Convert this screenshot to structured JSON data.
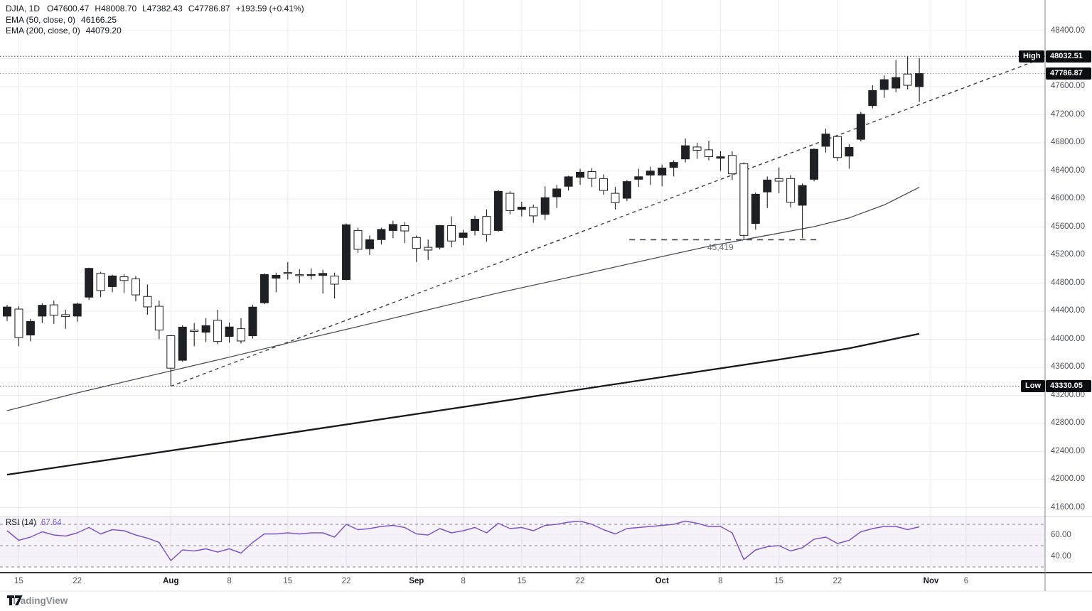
{
  "legend": {
    "symbol": "DJIA, 1D",
    "open": "O47600.47",
    "high": "H48008.70",
    "low": "L47382.43",
    "close": "C47786.87",
    "change": "+193.59 (+0.41%)",
    "ema50_label": "EMA (50, close, 0)",
    "ema50_value": "46166.25",
    "ema200_label": "EMA (200, close, 0)",
    "ema200_value": "44079.20"
  },
  "marks": {
    "high_label": "High",
    "high_value": "48032.51",
    "last_value": "47786.87",
    "low_label": "Low",
    "low_value": "43330.05"
  },
  "support": {
    "label": "45,419"
  },
  "rsi_legend": {
    "label": "RSI (14)",
    "value": "67.64"
  },
  "watermark": {
    "text": "TradingView"
  },
  "colors": {
    "up_candle": "#1f2024",
    "down_candle_fill": "#ffffff",
    "candle_stroke": "#1f2024",
    "ema50": "#4b4e57",
    "ema200": "#17181c",
    "trendline": "#3e4148",
    "rsi_line": "#7e57c2",
    "rsi_band_fill": "rgba(126,87,194,0.08)",
    "grid": "#ececec",
    "badge_bg": "#0c0d10",
    "axis_text": "#51545c",
    "dotted_mark": "#4e5056",
    "dotted_last": "#989ba4",
    "support_dash": "#4c4f58"
  },
  "price_axis": {
    "labels": [
      "48400.00",
      "47600.00",
      "47200.00",
      "46800.00",
      "46400.00",
      "46000.00",
      "45600.00",
      "45200.00",
      "44800.00",
      "44400.00",
      "44000.00",
      "43600.00",
      "43200.00",
      "42800.00",
      "42400.00",
      "42000.00",
      "41600.00"
    ],
    "values": [
      48400,
      47600,
      47200,
      46800,
      46400,
      46000,
      45600,
      45200,
      44800,
      44400,
      44000,
      43600,
      43200,
      42800,
      42400,
      42000,
      41600
    ],
    "grid_min": 41600,
    "grid_max": 48400,
    "grid_step": 400
  },
  "rsi_axis": {
    "labels": [
      "60.00",
      "40.00"
    ],
    "values": [
      60,
      40
    ]
  },
  "time_axis": {
    "ticks": [
      {
        "label": "15",
        "i": 1,
        "bold": false
      },
      {
        "label": "22",
        "i": 6,
        "bold": false
      },
      {
        "label": "Aug",
        "i": 14,
        "bold": true
      },
      {
        "label": "8",
        "i": 19,
        "bold": false
      },
      {
        "label": "15",
        "i": 24,
        "bold": false
      },
      {
        "label": "22",
        "i": 29,
        "bold": false
      },
      {
        "label": "Sep",
        "i": 35,
        "bold": true
      },
      {
        "label": "8",
        "i": 39,
        "bold": false
      },
      {
        "label": "15",
        "i": 44,
        "bold": false
      },
      {
        "label": "22",
        "i": 49,
        "bold": false
      },
      {
        "label": "Oct",
        "i": 56,
        "bold": true
      },
      {
        "label": "8",
        "i": 61,
        "bold": false
      },
      {
        "label": "15",
        "i": 66,
        "bold": false
      },
      {
        "label": "22",
        "i": 71,
        "bold": false
      },
      {
        "label": "Nov",
        "i": 79,
        "bold": true
      },
      {
        "label": "6",
        "i": 82,
        "bold": false
      }
    ]
  },
  "chart_data": {
    "type": "candlestick",
    "symbol": "DJIA",
    "interval": "1D",
    "title": "DJIA, 1D",
    "ylim": [
      41600,
      48400
    ],
    "grid": true,
    "last_bar": {
      "open": 47600.47,
      "high": 48008.7,
      "low": 47382.43,
      "close": 47786.87,
      "change": 193.59,
      "change_pct": 0.41
    },
    "high_mark": 48032.51,
    "low_mark": 43330.05,
    "last_price": 47786.87,
    "candles_ohlc": [
      [
        44330,
        44490,
        44260,
        44459
      ],
      [
        44430,
        44470,
        43900,
        44023
      ],
      [
        44060,
        44290,
        43970,
        44254
      ],
      [
        44330,
        44510,
        44230,
        44484
      ],
      [
        44490,
        44550,
        44220,
        44342
      ],
      [
        44350,
        44420,
        44150,
        44323
      ],
      [
        44330,
        44520,
        44250,
        44502
      ],
      [
        44600,
        45020,
        44560,
        45010
      ],
      [
        44940,
        44960,
        44600,
        44694
      ],
      [
        44750,
        44920,
        44670,
        44902
      ],
      [
        44890,
        44930,
        44660,
        44837
      ],
      [
        44860,
        44900,
        44540,
        44632
      ],
      [
        44610,
        44780,
        44350,
        44461
      ],
      [
        44470,
        44550,
        44000,
        44131
      ],
      [
        44050,
        44060,
        43330.05,
        43588
      ],
      [
        43700,
        44200,
        43680,
        44173
      ],
      [
        44130,
        44230,
        43900,
        44111
      ],
      [
        44100,
        44300,
        43960,
        44193
      ],
      [
        44270,
        44420,
        43930,
        43968
      ],
      [
        44040,
        44240,
        43950,
        44175
      ],
      [
        44150,
        44300,
        43940,
        43975
      ],
      [
        44050,
        44490,
        44010,
        44458
      ],
      [
        44520,
        44940,
        44500,
        44922
      ],
      [
        44870,
        44950,
        44670,
        44911
      ],
      [
        44950,
        45100,
        44850,
        44946
      ],
      [
        44920,
        45000,
        44800,
        44912
      ],
      [
        44920,
        45010,
        44850,
        44922
      ],
      [
        44910,
        44990,
        44650,
        44938
      ],
      [
        44900,
        44950,
        44580,
        44785
      ],
      [
        44850,
        45650,
        44840,
        45631
      ],
      [
        45550,
        45590,
        45230,
        45282
      ],
      [
        45290,
        45480,
        45200,
        45418
      ],
      [
        45420,
        45590,
        45350,
        45565
      ],
      [
        45550,
        45690,
        45440,
        45636
      ],
      [
        45620,
        45670,
        45370,
        45544
      ],
      [
        45450,
        45480,
        45100,
        45295
      ],
      [
        45310,
        45420,
        45130,
        45271
      ],
      [
        45310,
        45630,
        45280,
        45621
      ],
      [
        45620,
        45750,
        45310,
        45400
      ],
      [
        45450,
        45560,
        45340,
        45514
      ],
      [
        45550,
        45760,
        45480,
        45711
      ],
      [
        45750,
        45850,
        45390,
        45490
      ],
      [
        45550,
        46130,
        45530,
        46108
      ],
      [
        46080,
        46110,
        45780,
        45834
      ],
      [
        45850,
        45960,
        45750,
        45883
      ],
      [
        45880,
        45920,
        45660,
        45758
      ],
      [
        45780,
        46180,
        45700,
        46018
      ],
      [
        46030,
        46200,
        45870,
        46142
      ],
      [
        46180,
        46330,
        46120,
        46315
      ],
      [
        46310,
        46430,
        46200,
        46381
      ],
      [
        46390,
        46440,
        46170,
        46293
      ],
      [
        46290,
        46350,
        46060,
        46121
      ],
      [
        46080,
        46170,
        45850,
        45947
      ],
      [
        46010,
        46270,
        45970,
        46247
      ],
      [
        46280,
        46430,
        46170,
        46316
      ],
      [
        46340,
        46460,
        46200,
        46398
      ],
      [
        46340,
        46490,
        46180,
        46441
      ],
      [
        46450,
        46550,
        46320,
        46520
      ],
      [
        46570,
        46860,
        46520,
        46758
      ],
      [
        46740,
        46800,
        46570,
        46694
      ],
      [
        46700,
        46830,
        46550,
        46603
      ],
      [
        46580,
        46680,
        46400,
        46601
      ],
      [
        46620,
        46680,
        46270,
        46358
      ],
      [
        46500,
        46520,
        45419,
        45480
      ],
      [
        45650,
        46090,
        45560,
        46067
      ],
      [
        46100,
        46320,
        45870,
        46270
      ],
      [
        46290,
        46450,
        46080,
        46253
      ],
      [
        46290,
        46340,
        45880,
        45952
      ],
      [
        45910,
        46220,
        45440,
        46191
      ],
      [
        46280,
        46720,
        46250,
        46707
      ],
      [
        46750,
        47000,
        46660,
        46925
      ],
      [
        46890,
        46910,
        46540,
        46590
      ],
      [
        46610,
        46780,
        46430,
        46735
      ],
      [
        46850,
        47240,
        46820,
        47207
      ],
      [
        47330,
        47620,
        47290,
        47545
      ],
      [
        47560,
        47760,
        47440,
        47700
      ],
      [
        47580,
        47980,
        47520,
        47730
      ],
      [
        47780,
        48032.51,
        47560,
        47620
      ],
      [
        47600.47,
        48008.7,
        47382.43,
        47786.87
      ]
    ],
    "ema50": {
      "period": 50,
      "current": 46166.25,
      "anchors": [
        [
          0,
          42982
        ],
        [
          6,
          43235
        ],
        [
          12,
          43470
        ],
        [
          18,
          43705
        ],
        [
          24,
          43945
        ],
        [
          30,
          44180
        ],
        [
          36,
          44420
        ],
        [
          42,
          44660
        ],
        [
          48,
          44880
        ],
        [
          54,
          45105
        ],
        [
          60,
          45325
        ],
        [
          64,
          45450
        ],
        [
          69,
          45605
        ],
        [
          72,
          45730
        ],
        [
          75,
          45915
        ],
        [
          78,
          46166.25
        ]
      ]
    },
    "ema200": {
      "period": 200,
      "current": 44079.2,
      "anchors": [
        [
          0,
          42070
        ],
        [
          12,
          42363
        ],
        [
          24,
          42660
        ],
        [
          36,
          42960
        ],
        [
          48,
          43260
        ],
        [
          60,
          43560
        ],
        [
          66,
          43710
        ],
        [
          72,
          43870
        ],
        [
          78,
          44079.2
        ]
      ]
    },
    "trendline": {
      "style": "dashed",
      "from": {
        "i": 14,
        "price": 43330
      },
      "to": {
        "i": 88.3,
        "price": 47990
      }
    },
    "support_line": {
      "price": 45419,
      "from_i": 53.2,
      "to_i": 69.2,
      "label": "45,419",
      "style": "dashed"
    },
    "rsi": {
      "period": 14,
      "current": 67.64,
      "upper_band": 70,
      "middle": 50,
      "lower_band": 30,
      "axis_ticks": [
        60,
        40
      ],
      "values": [
        64,
        55,
        58,
        63,
        60,
        59,
        62,
        67,
        61,
        65,
        64,
        60,
        57,
        53,
        36,
        46,
        45,
        47,
        44,
        47,
        43,
        53,
        61,
        61,
        62,
        61,
        62,
        62,
        58,
        70,
        65,
        66,
        68,
        69,
        67,
        61,
        60,
        66,
        62,
        64,
        67,
        62,
        71,
        66,
        67,
        64,
        69,
        70,
        72,
        73,
        70,
        65,
        61,
        66,
        67,
        68,
        69,
        70,
        73,
        71,
        68,
        68,
        62,
        37,
        46,
        49,
        50,
        45,
        48,
        56,
        58,
        52,
        55,
        63,
        66,
        68,
        68,
        65,
        67.64
      ]
    }
  }
}
